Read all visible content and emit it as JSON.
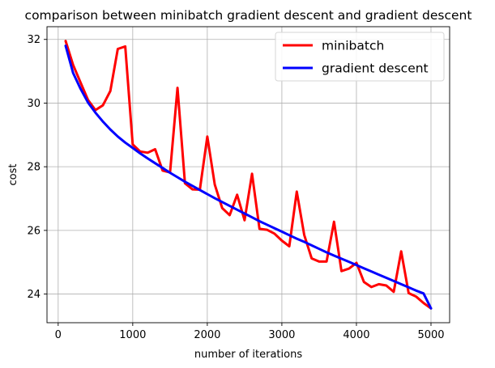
{
  "chart_data": {
    "type": "line",
    "title": "comparison between minibatch gradient descent and gradient descent",
    "xlabel": "number of iterations",
    "ylabel": "cost",
    "xlim": [
      -150,
      5250
    ],
    "ylim": [
      23.1,
      32.4
    ],
    "xticks": [
      0,
      1000,
      2000,
      3000,
      4000,
      5000
    ],
    "yticks": [
      24,
      26,
      28,
      30,
      32
    ],
    "grid": true,
    "legend_position": "top-right",
    "series": [
      {
        "name": "minibatch",
        "color": "#ff0000",
        "x": [
          100,
          200,
          300,
          400,
          500,
          600,
          700,
          800,
          900,
          1000,
          1100,
          1200,
          1300,
          1400,
          1500,
          1600,
          1700,
          1800,
          1900,
          2000,
          2100,
          2200,
          2300,
          2400,
          2500,
          2600,
          2700,
          2800,
          2900,
          3000,
          3100,
          3200,
          3300,
          3400,
          3500,
          3600,
          3700,
          3800,
          3900,
          4000,
          4100,
          4200,
          4300,
          4400,
          4500,
          4600,
          4700,
          4800,
          4900,
          5000
        ],
        "y": [
          31.95,
          31.2,
          30.65,
          30.1,
          29.78,
          29.93,
          30.38,
          31.7,
          31.78,
          28.7,
          28.48,
          28.44,
          28.55,
          27.88,
          27.82,
          30.48,
          27.48,
          27.29,
          27.28,
          28.95,
          27.44,
          26.7,
          26.48,
          27.12,
          26.32,
          27.78,
          26.05,
          26.02,
          25.9,
          25.68,
          25.5,
          27.22,
          25.86,
          25.12,
          25.02,
          25.02,
          26.27,
          24.72,
          24.8,
          24.98,
          24.38,
          24.22,
          24.31,
          24.27,
          24.07,
          25.34,
          24.03,
          23.92,
          23.72,
          23.55
        ]
      },
      {
        "name": "gradient descent",
        "color": "#0000ff",
        "x": [
          100,
          200,
          300,
          400,
          500,
          600,
          700,
          800,
          900,
          1000,
          1100,
          1200,
          1300,
          1400,
          1500,
          1600,
          1700,
          1800,
          1900,
          2000,
          2100,
          2200,
          2300,
          2400,
          2500,
          2600,
          2700,
          2800,
          2900,
          3000,
          3100,
          3200,
          3300,
          3400,
          3500,
          3600,
          3700,
          3800,
          3900,
          4000,
          4100,
          4200,
          4300,
          4400,
          4500,
          4600,
          4700,
          4800,
          4900,
          5000
        ],
        "y": [
          31.8,
          30.95,
          30.45,
          30.02,
          29.7,
          29.42,
          29.17,
          28.95,
          28.76,
          28.59,
          28.42,
          28.26,
          28.11,
          27.96,
          27.81,
          27.67,
          27.53,
          27.4,
          27.27,
          27.14,
          27.01,
          26.89,
          26.77,
          26.65,
          26.53,
          26.41,
          26.29,
          26.18,
          26.07,
          25.96,
          25.85,
          25.74,
          25.64,
          25.53,
          25.42,
          25.31,
          25.21,
          25.11,
          25.01,
          24.91,
          24.81,
          24.71,
          24.61,
          24.51,
          24.41,
          24.31,
          24.21,
          24.11,
          24.02,
          23.55
        ]
      }
    ]
  }
}
